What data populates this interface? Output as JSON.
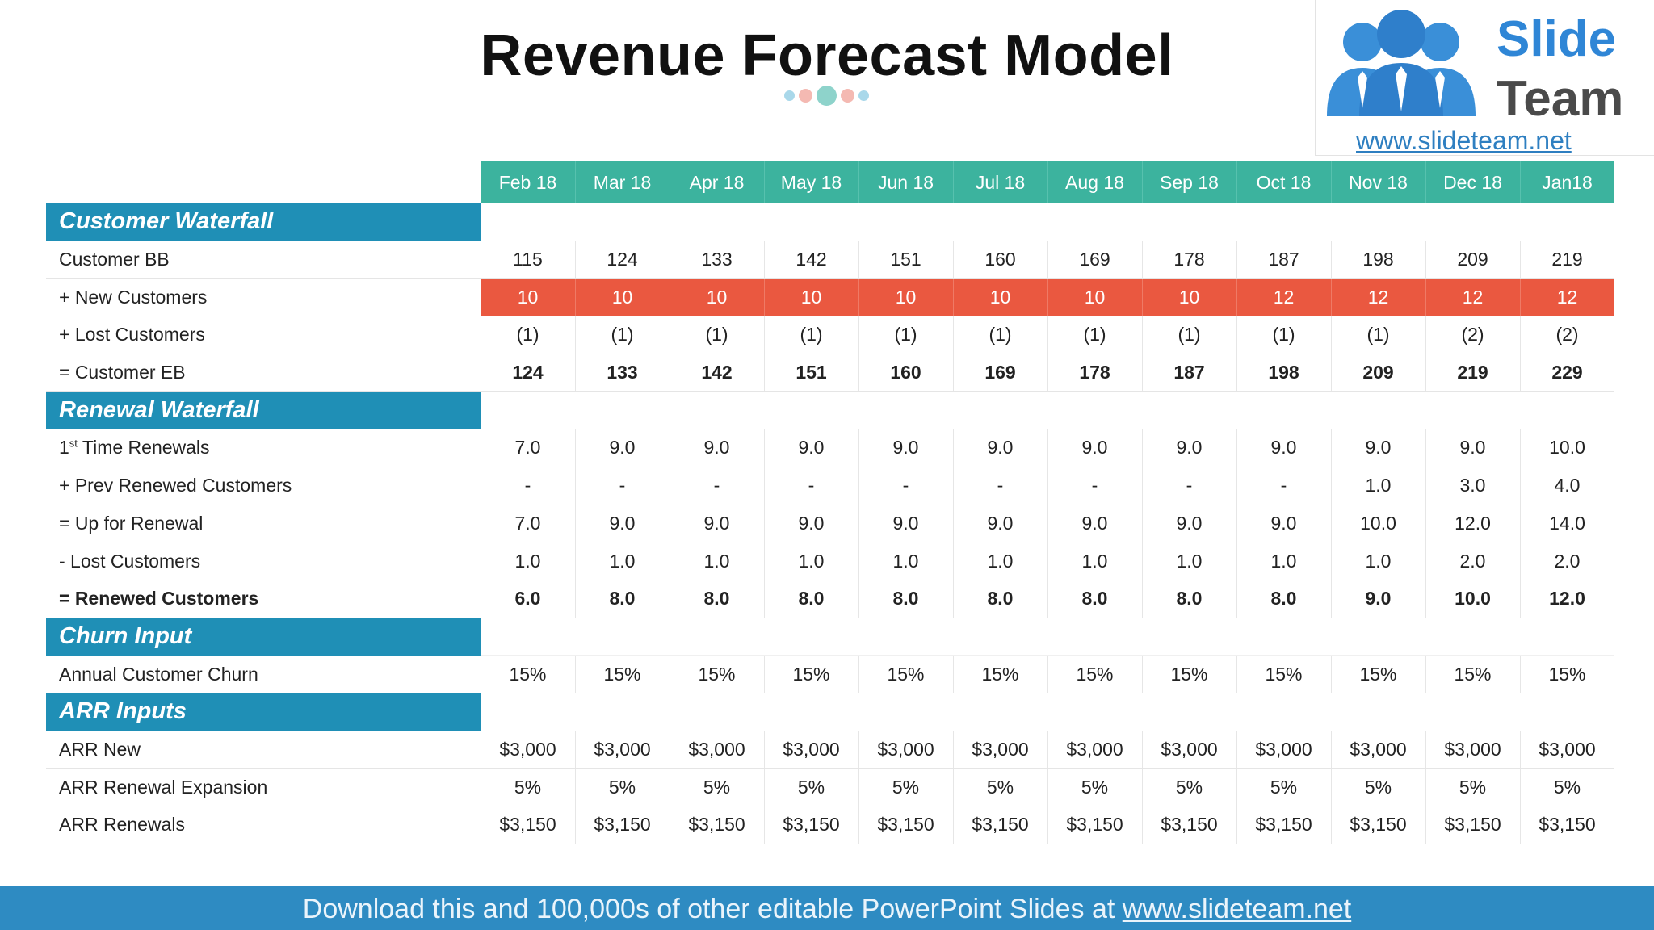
{
  "title": "Revenue Forecast Model",
  "colors": {
    "header_teal": "#3cb39e",
    "section_blue": "#1f8fb6",
    "highlight_red": "#ea5840",
    "footer_blue": "#2e8bc2"
  },
  "logo": {
    "word1": "Slide",
    "word2": "Team",
    "url": "www.slideteam.net",
    "icon": "people-group-icon"
  },
  "table": {
    "months": [
      "Feb 18",
      "Mar 18",
      "Apr 18",
      "May 18",
      "Jun 18",
      "Jul 18",
      "Aug 18",
      "Sep 18",
      "Oct 18",
      "Nov 18",
      "Dec 18",
      "Jan18"
    ],
    "sections": [
      {
        "title": "Customer Waterfall",
        "rows": [
          {
            "label": "Customer BB",
            "values": [
              "115",
              "124",
              "133",
              "142",
              "151",
              "160",
              "169",
              "178",
              "187",
              "198",
              "209",
              "219"
            ]
          },
          {
            "label": "+ New Customers",
            "style": "red",
            "values": [
              "10",
              "10",
              "10",
              "10",
              "10",
              "10",
              "10",
              "10",
              "12",
              "12",
              "12",
              "12"
            ]
          },
          {
            "label": "+ Lost Customers",
            "values": [
              "(1)",
              "(1)",
              "(1)",
              "(1)",
              "(1)",
              "(1)",
              "(1)",
              "(1)",
              "(1)",
              "(1)",
              "(2)",
              "(2)"
            ]
          },
          {
            "label": "= Customer EB",
            "style": "bold-values",
            "values": [
              "124",
              "133",
              "142",
              "151",
              "160",
              "169",
              "178",
              "187",
              "198",
              "209",
              "219",
              "229"
            ]
          }
        ]
      },
      {
        "title": "Renewal Waterfall",
        "rows": [
          {
            "label_main": "1",
            "label_sup": "st",
            "label_rest": " Time Renewals",
            "values": [
              "7.0",
              "9.0",
              "9.0",
              "9.0",
              "9.0",
              "9.0",
              "9.0",
              "9.0",
              "9.0",
              "9.0",
              "9.0",
              "10.0"
            ]
          },
          {
            "label": "+ Prev Renewed Customers",
            "values": [
              "-",
              "-",
              "-",
              "-",
              "-",
              "-",
              "-",
              "-",
              "-",
              "1.0",
              "3.0",
              "4.0"
            ]
          },
          {
            "label": "= Up for Renewal",
            "values": [
              "7.0",
              "9.0",
              "9.0",
              "9.0",
              "9.0",
              "9.0",
              "9.0",
              "9.0",
              "9.0",
              "10.0",
              "12.0",
              "14.0"
            ]
          },
          {
            "label": "- Lost Customers",
            "values": [
              "1.0",
              "1.0",
              "1.0",
              "1.0",
              "1.0",
              "1.0",
              "1.0",
              "1.0",
              "1.0",
              "1.0",
              "2.0",
              "2.0"
            ]
          },
          {
            "label": "= Renewed Customers",
            "style": "bold",
            "values": [
              "6.0",
              "8.0",
              "8.0",
              "8.0",
              "8.0",
              "8.0",
              "8.0",
              "8.0",
              "8.0",
              "9.0",
              "10.0",
              "12.0"
            ]
          }
        ]
      },
      {
        "title": "Churn Input",
        "rows": [
          {
            "label": "Annual Customer Churn",
            "values": [
              "15%",
              "15%",
              "15%",
              "15%",
              "15%",
              "15%",
              "15%",
              "15%",
              "15%",
              "15%",
              "15%",
              "15%"
            ]
          }
        ]
      },
      {
        "title": "ARR Inputs",
        "rows": [
          {
            "label": "ARR New",
            "values": [
              "$3,000",
              "$3,000",
              "$3,000",
              "$3,000",
              "$3,000",
              "$3,000",
              "$3,000",
              "$3,000",
              "$3,000",
              "$3,000",
              "$3,000",
              "$3,000"
            ]
          },
          {
            "label": "ARR Renewal Expansion",
            "values": [
              "5%",
              "5%",
              "5%",
              "5%",
              "5%",
              "5%",
              "5%",
              "5%",
              "5%",
              "5%",
              "5%",
              "5%"
            ]
          },
          {
            "label": "ARR Renewals",
            "values": [
              "$3,150",
              "$3,150",
              "$3,150",
              "$3,150",
              "$3,150",
              "$3,150",
              "$3,150",
              "$3,150",
              "$3,150",
              "$3,150",
              "$3,150",
              "$3,150"
            ]
          }
        ]
      }
    ]
  },
  "footer": {
    "text": "Download this and 100,000s of other editable PowerPoint Slides at ",
    "link": "www.slideteam.net"
  }
}
